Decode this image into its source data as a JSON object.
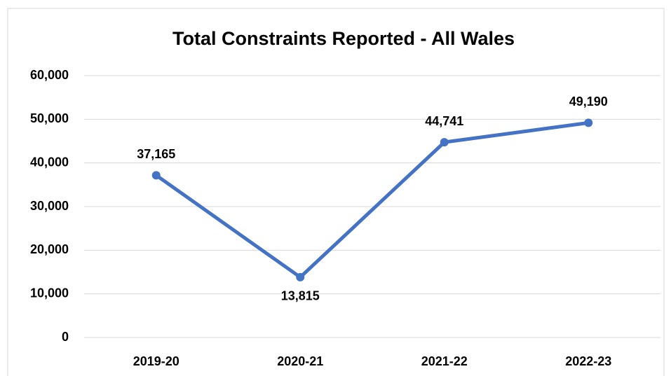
{
  "chart_data": {
    "type": "line",
    "title": "Total Constraints Reported - All Wales",
    "categories": [
      "2019-20",
      "2020-21",
      "2021-22",
      "2022-23"
    ],
    "series": [
      {
        "color": "#4472c4",
        "values": [
          37165,
          13815,
          44741,
          49190
        ],
        "value_labels": [
          "37,165",
          "13,815",
          "44,741",
          "49,190"
        ]
      }
    ],
    "ylim": [
      0,
      60000
    ],
    "yticks": [
      0,
      {
        "value": 10000,
        "label": "10,000"
      },
      {
        "value": 20000,
        "label": "20,000"
      },
      {
        "value": 30000,
        "label": "30,000"
      },
      {
        "value": 40000,
        "label": "40,000"
      },
      {
        "value": 50000,
        "label": "50,000"
      },
      {
        "value": 60000,
        "label": "60,000"
      }
    ],
    "grid": true
  }
}
